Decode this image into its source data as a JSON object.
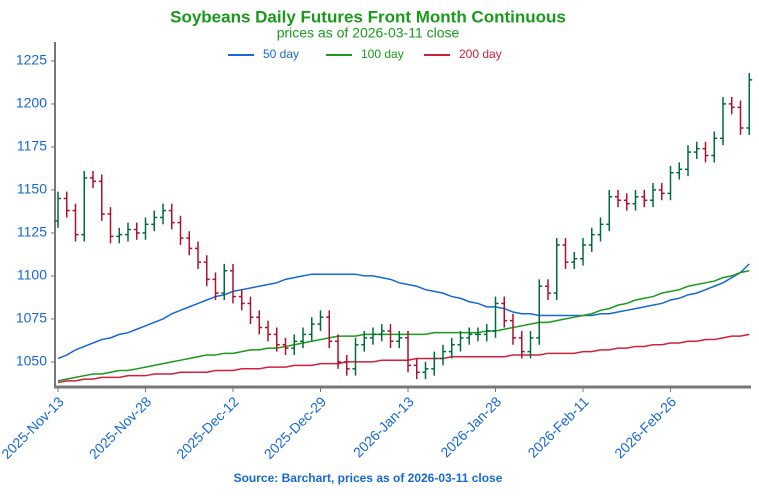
{
  "chart_data": {
    "type": "ohlc",
    "title": "Soybeans Daily Futures Front Month Continuous",
    "subtitle": "prices as of 2026-03-11 close",
    "source": "Source: Barchart, prices as of 2026-03-11 close",
    "categories": [
      "2025-Nov-13",
      null,
      null,
      null,
      null,
      null,
      null,
      null,
      null,
      null,
      "2025-Nov-28",
      null,
      null,
      null,
      null,
      null,
      null,
      null,
      null,
      null,
      "2025-Dec-12",
      null,
      null,
      null,
      null,
      null,
      null,
      null,
      null,
      null,
      "2025-Dec-29",
      null,
      null,
      null,
      null,
      null,
      null,
      null,
      null,
      null,
      "2026-Jan-13",
      null,
      null,
      null,
      null,
      null,
      null,
      null,
      null,
      null,
      "2026-Jan-28",
      null,
      null,
      null,
      null,
      null,
      null,
      null,
      null,
      null,
      "2026-Feb-11",
      null,
      null,
      null,
      null,
      null,
      null,
      null,
      null,
      null,
      "2026-Feb-26",
      null,
      null,
      null,
      null,
      null,
      null,
      null,
      null,
      null
    ],
    "open": [
      1132,
      1145,
      1138,
      1124,
      1157,
      1155,
      1136,
      1123,
      1124,
      1127,
      1125,
      1130,
      1134,
      1138,
      1131,
      1122,
      1116,
      1108,
      1098,
      1090,
      1103,
      1088,
      1084,
      1076,
      1070,
      1066,
      1060,
      1058,
      1062,
      1066,
      1072,
      1076,
      1062,
      1050,
      1046,
      1060,
      1064,
      1066,
      1068,
      1062,
      1064,
      1048,
      1044,
      1046,
      1052,
      1056,
      1060,
      1064,
      1066,
      1066,
      1068,
      1084,
      1074,
      1064,
      1056,
      1064,
      1094,
      1090,
      1118,
      1108,
      1110,
      1118,
      1124,
      1130,
      1146,
      1144,
      1142,
      1146,
      1144,
      1150,
      1148,
      1160,
      1162,
      1172,
      1174,
      1170,
      1180,
      1200,
      1198,
      1186
    ],
    "high": [
      1149,
      1149,
      1142,
      1161,
      1161,
      1159,
      1140,
      1128,
      1131,
      1131,
      1134,
      1138,
      1142,
      1142,
      1135,
      1126,
      1120,
      1112,
      1102,
      1107,
      1107,
      1092,
      1088,
      1080,
      1074,
      1070,
      1064,
      1066,
      1070,
      1076,
      1080,
      1080,
      1066,
      1054,
      1064,
      1068,
      1070,
      1072,
      1072,
      1068,
      1068,
      1052,
      1050,
      1056,
      1060,
      1064,
      1068,
      1070,
      1070,
      1072,
      1088,
      1088,
      1078,
      1068,
      1068,
      1098,
      1098,
      1122,
      1122,
      1114,
      1122,
      1128,
      1134,
      1150,
      1150,
      1148,
      1150,
      1150,
      1154,
      1154,
      1164,
      1166,
      1176,
      1178,
      1178,
      1184,
      1204,
      1204,
      1202,
      1218
    ],
    "low": [
      1128,
      1134,
      1120,
      1120,
      1151,
      1132,
      1119,
      1119,
      1120,
      1121,
      1121,
      1126,
      1130,
      1127,
      1118,
      1112,
      1104,
      1094,
      1086,
      1086,
      1084,
      1080,
      1072,
      1066,
      1062,
      1056,
      1054,
      1054,
      1058,
      1062,
      1068,
      1058,
      1046,
      1042,
      1042,
      1056,
      1060,
      1062,
      1058,
      1058,
      1044,
      1040,
      1040,
      1042,
      1048,
      1052,
      1056,
      1060,
      1062,
      1062,
      1064,
      1070,
      1060,
      1052,
      1052,
      1060,
      1086,
      1086,
      1104,
      1104,
      1106,
      1114,
      1120,
      1126,
      1140,
      1138,
      1138,
      1140,
      1140,
      1144,
      1144,
      1156,
      1158,
      1168,
      1166,
      1166,
      1176,
      1194,
      1182,
      1182
    ],
    "close": [
      1145,
      1138,
      1124,
      1157,
      1155,
      1136,
      1123,
      1124,
      1127,
      1125,
      1130,
      1134,
      1138,
      1131,
      1122,
      1116,
      1108,
      1098,
      1090,
      1103,
      1088,
      1084,
      1076,
      1070,
      1066,
      1060,
      1058,
      1062,
      1066,
      1072,
      1076,
      1062,
      1050,
      1046,
      1060,
      1064,
      1066,
      1068,
      1062,
      1064,
      1048,
      1044,
      1046,
      1052,
      1056,
      1060,
      1064,
      1066,
      1066,
      1068,
      1084,
      1074,
      1064,
      1056,
      1064,
      1094,
      1090,
      1118,
      1108,
      1110,
      1118,
      1124,
      1130,
      1146,
      1144,
      1142,
      1146,
      1144,
      1150,
      1148,
      1160,
      1162,
      1172,
      1174,
      1170,
      1180,
      1200,
      1198,
      1186,
      1214
    ],
    "up_color": "#006b3c",
    "down_color": "#b0102c",
    "series": [
      {
        "name": "50 day",
        "color": "#1668d8",
        "values": [
          1052,
          1054,
          1057,
          1059,
          1061,
          1063,
          1064,
          1066,
          1067,
          1069,
          1071,
          1073,
          1075,
          1078,
          1080,
          1082,
          1084,
          1086,
          1088,
          1089,
          1091,
          1092,
          1093,
          1094,
          1095,
          1096,
          1098,
          1099,
          1100,
          1101,
          1101,
          1101,
          1101,
          1101,
          1101,
          1100,
          1100,
          1099,
          1098,
          1096,
          1095,
          1094,
          1092,
          1091,
          1090,
          1088,
          1087,
          1085,
          1084,
          1082,
          1082,
          1081,
          1079,
          1078,
          1078,
          1077,
          1077,
          1077,
          1077,
          1077,
          1077,
          1077,
          1078,
          1078,
          1079,
          1080,
          1081,
          1082,
          1083,
          1084,
          1086,
          1087,
          1089,
          1090,
          1092,
          1094,
          1096,
          1099,
          1102,
          1107
        ]
      },
      {
        "name": "100 day",
        "color": "#1a9a1a",
        "values": [
          1039,
          1040,
          1041,
          1042,
          1043,
          1043,
          1044,
          1045,
          1045,
          1046,
          1047,
          1048,
          1049,
          1050,
          1051,
          1052,
          1053,
          1054,
          1054,
          1055,
          1055,
          1056,
          1057,
          1057,
          1058,
          1058,
          1059,
          1060,
          1061,
          1062,
          1063,
          1064,
          1065,
          1065,
          1065,
          1066,
          1066,
          1066,
          1066,
          1066,
          1066,
          1066,
          1066,
          1067,
          1067,
          1067,
          1067,
          1067,
          1067,
          1068,
          1068,
          1069,
          1070,
          1071,
          1072,
          1073,
          1073,
          1074,
          1075,
          1076,
          1077,
          1078,
          1080,
          1081,
          1083,
          1084,
          1086,
          1087,
          1088,
          1090,
          1091,
          1092,
          1094,
          1095,
          1096,
          1097,
          1099,
          1100,
          1102,
          1103
        ]
      },
      {
        "name": "200 day",
        "color": "#d0203a",
        "values": [
          1038,
          1039,
          1039,
          1040,
          1040,
          1041,
          1041,
          1041,
          1042,
          1042,
          1042,
          1043,
          1043,
          1043,
          1044,
          1044,
          1044,
          1044,
          1045,
          1045,
          1045,
          1046,
          1046,
          1046,
          1047,
          1047,
          1047,
          1048,
          1048,
          1048,
          1049,
          1049,
          1049,
          1050,
          1050,
          1050,
          1050,
          1051,
          1051,
          1051,
          1051,
          1052,
          1052,
          1052,
          1052,
          1053,
          1053,
          1053,
          1053,
          1053,
          1053,
          1053,
          1054,
          1054,
          1054,
          1054,
          1055,
          1055,
          1055,
          1055,
          1056,
          1056,
          1057,
          1057,
          1058,
          1058,
          1059,
          1059,
          1060,
          1060,
          1061,
          1061,
          1062,
          1062,
          1063,
          1063,
          1064,
          1065,
          1065,
          1066
        ]
      }
    ],
    "ylim": [
      1036,
      1236
    ],
    "yticks": [
      1050,
      1075,
      1100,
      1125,
      1150,
      1175,
      1200,
      1225
    ]
  }
}
